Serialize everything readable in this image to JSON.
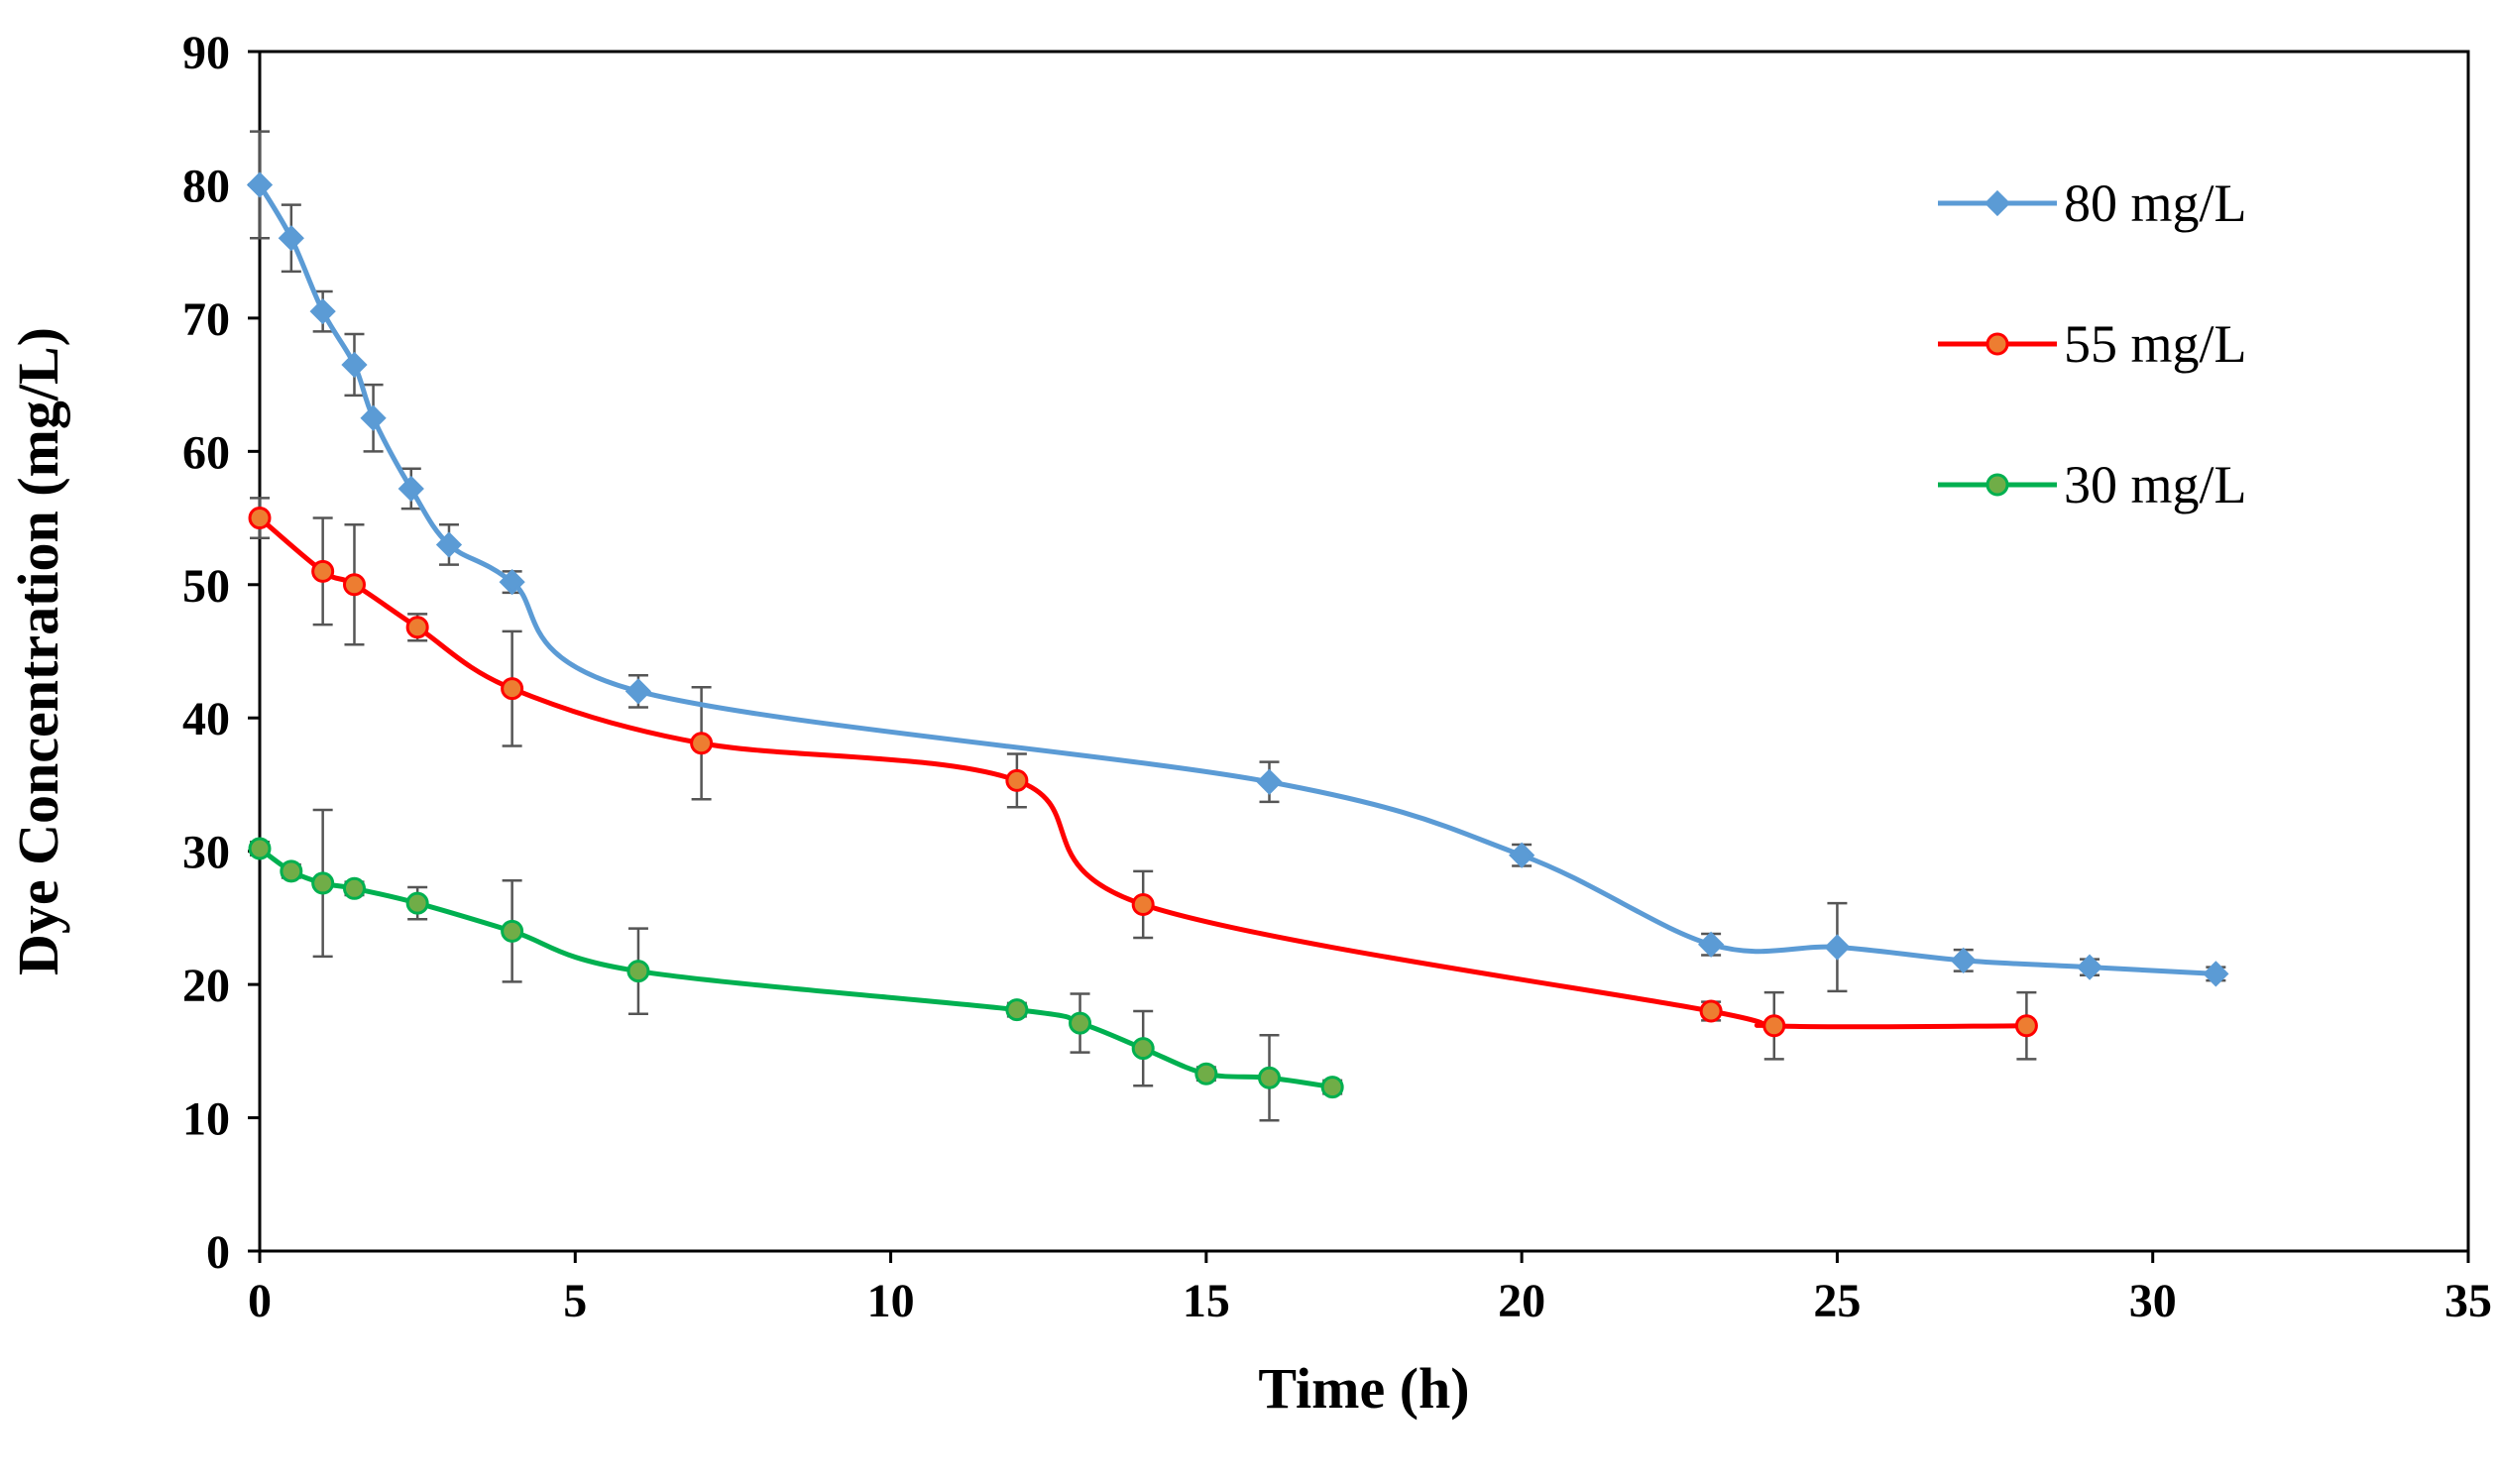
{
  "chart_data": {
    "type": "line",
    "title": "",
    "xlabel": "Time (h)",
    "ylabel": "Dye Concentration (mg/L)",
    "xlim": [
      0,
      35
    ],
    "ylim": [
      0,
      90
    ],
    "x_ticks": [
      0,
      5,
      10,
      15,
      20,
      25,
      30,
      35
    ],
    "y_ticks": [
      0,
      10,
      20,
      30,
      40,
      50,
      60,
      70,
      80,
      90
    ],
    "grid": false,
    "legend_position": "top-right",
    "smoothed": true,
    "error_bars": true,
    "series": [
      {
        "name": "80 mg/L",
        "color": "#5B9BD5",
        "marker": "diamond",
        "points": [
          {
            "x": 0,
            "y": 80,
            "err": 4
          },
          {
            "x": 0.5,
            "y": 76,
            "err": 2.5
          },
          {
            "x": 1,
            "y": 70.5,
            "err": 1.5
          },
          {
            "x": 1.5,
            "y": 66.5,
            "err": 2.3
          },
          {
            "x": 1.8,
            "y": 62.5,
            "err": 2.5
          },
          {
            "x": 2.4,
            "y": 57.2,
            "err": 1.5
          },
          {
            "x": 3,
            "y": 53,
            "err": 1.5
          },
          {
            "x": 4,
            "y": 50.2,
            "err": 0.8
          },
          {
            "x": 6,
            "y": 42,
            "err": 1.2
          },
          {
            "x": 16,
            "y": 35.2,
            "err": 1.5
          },
          {
            "x": 20,
            "y": 29.7,
            "err": 0.8
          },
          {
            "x": 23,
            "y": 23,
            "err": 0.8
          },
          {
            "x": 25,
            "y": 22.8,
            "err": 3.3
          },
          {
            "x": 27,
            "y": 21.8,
            "err": 0.8
          },
          {
            "x": 29,
            "y": 21.3,
            "err": 0.6
          },
          {
            "x": 31,
            "y": 20.8,
            "err": 0.5
          }
        ]
      },
      {
        "name": "55 mg/L",
        "color": "#FF0000",
        "marker_fill": "#ED7D31",
        "marker": "circle",
        "points": [
          {
            "x": 0,
            "y": 55,
            "err": 1.5
          },
          {
            "x": 1,
            "y": 51,
            "err": 4
          },
          {
            "x": 1.5,
            "y": 50,
            "err": 4.5
          },
          {
            "x": 2.5,
            "y": 46.8,
            "err": 1
          },
          {
            "x": 4,
            "y": 42.2,
            "err": 4.3
          },
          {
            "x": 7,
            "y": 38.1,
            "err": 4.2
          },
          {
            "x": 12,
            "y": 35.3,
            "err": 2
          },
          {
            "x": 14,
            "y": 26,
            "err": 2.5
          },
          {
            "x": 23,
            "y": 18,
            "err": 0.7
          },
          {
            "x": 24,
            "y": 16.9,
            "err": 2.5
          },
          {
            "x": 28,
            "y": 16.9,
            "err": 2.5
          }
        ]
      },
      {
        "name": "30 mg/L",
        "color": "#00B050",
        "marker_fill": "#70AD47",
        "marker": "circle",
        "points": [
          {
            "x": 0,
            "y": 30.2,
            "err": 0.5
          },
          {
            "x": 0.5,
            "y": 28.5,
            "err": 0.5
          },
          {
            "x": 1,
            "y": 27.6,
            "err": 5.5
          },
          {
            "x": 1.5,
            "y": 27.2,
            "err": 0.5
          },
          {
            "x": 2.5,
            "y": 26.1,
            "err": 1.2
          },
          {
            "x": 4,
            "y": 24,
            "err": 3.8
          },
          {
            "x": 6,
            "y": 21,
            "err": 3.2
          },
          {
            "x": 12,
            "y": 18.1,
            "err": 0.5
          },
          {
            "x": 13,
            "y": 17.1,
            "err": 2.2
          },
          {
            "x": 14,
            "y": 15.2,
            "err": 2.8
          },
          {
            "x": 15,
            "y": 13.3,
            "err": 0.5
          },
          {
            "x": 16,
            "y": 13,
            "err": 3.2
          },
          {
            "x": 17,
            "y": 12.3,
            "err": 0.5
          }
        ]
      }
    ]
  }
}
